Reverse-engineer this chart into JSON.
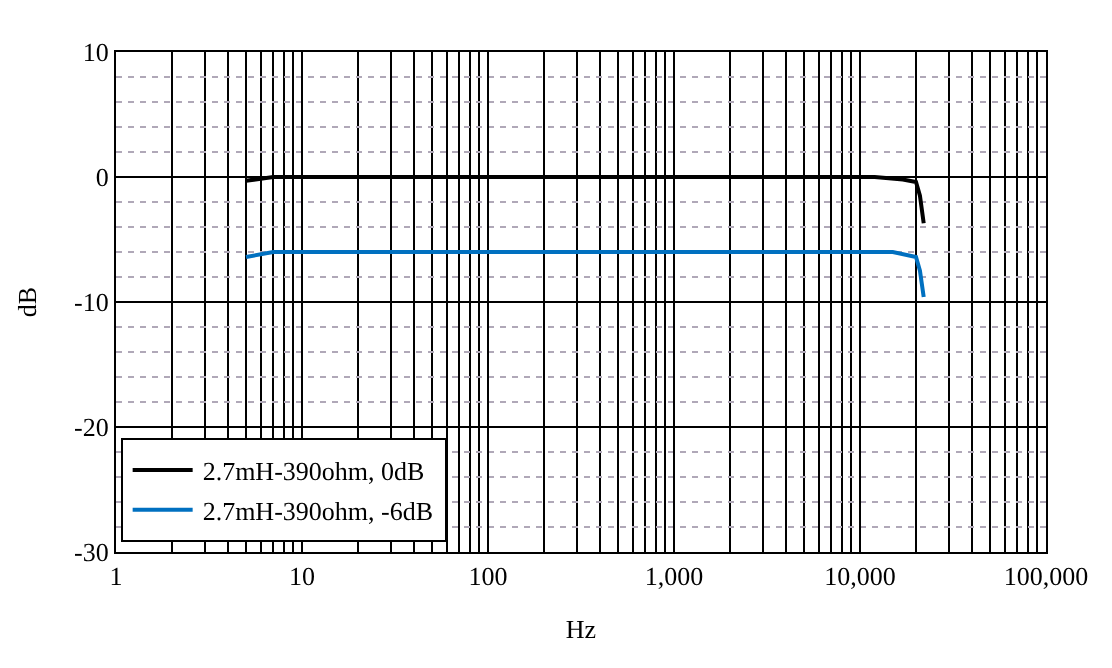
{
  "chart_data": {
    "type": "line",
    "xlabel": "Hz",
    "ylabel": "dB",
    "log": "x",
    "xlim": [
      1,
      100000
    ],
    "xticks": [
      1,
      10,
      100,
      {
        "value": 1000,
        "label": "1,000"
      },
      {
        "value": 10000,
        "label": "10,000"
      },
      {
        "value": 100000,
        "label": "100,000"
      }
    ],
    "ylim": [
      -30,
      10
    ],
    "yticks": [
      -30,
      -20,
      -10,
      0,
      10
    ],
    "grid": true,
    "legend": "bottom left",
    "marker": "none",
    "line_style": "solid",
    "series": [
      {
        "name": "2.7mH-390ohm, 0dB",
        "color": "#000000",
        "x": [
          5,
          7,
          1000,
          12000,
          17000,
          20000,
          21000,
          22000
        ],
        "values": [
          -0.3,
          0,
          0,
          0,
          -0.2,
          -0.4,
          -1.5,
          -3.7
        ]
      },
      {
        "name": "2.7mH-390ohm, -6dB",
        "color": "#0070c0",
        "x": [
          5,
          7,
          1000,
          15000,
          20000,
          21000,
          22000
        ],
        "values": [
          -6.4,
          -6,
          -6,
          -6,
          -6.4,
          -7.5,
          -9.6
        ]
      }
    ]
  }
}
